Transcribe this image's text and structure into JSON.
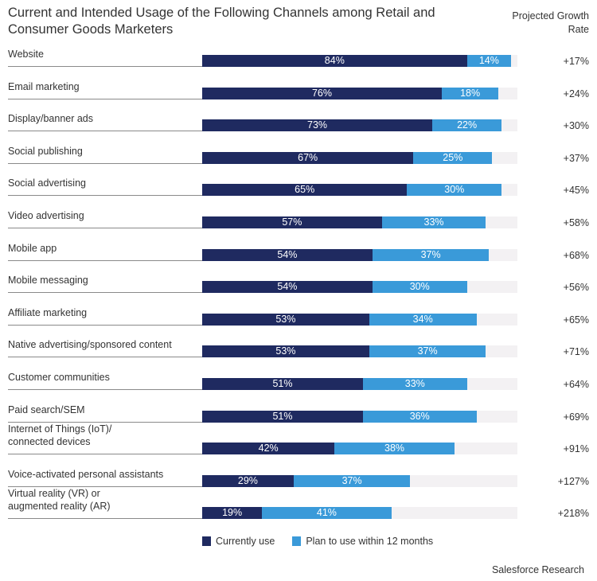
{
  "chart_data": {
    "type": "bar",
    "stacked": true,
    "orientation": "horizontal",
    "title": "Current and Intended Usage of the Following Channels among Retail and Consumer Goods Marketers",
    "growth_header": "Projected Growth Rate",
    "xlim": [
      0,
      100
    ],
    "categories": [
      "Website",
      "Email marketing",
      "Display/banner ads",
      "Social publishing",
      "Social advertising",
      "Video advertising",
      "Mobile app",
      "Mobile messaging",
      "Affiliate marketing",
      "Native advertising/sponsored content",
      "Customer communities",
      "Paid search/SEM",
      "Internet of Things (IoT)/ connected devices",
      "Voice-activated personal assistants",
      "Virtual reality (VR) or augmented reality (AR)"
    ],
    "series": [
      {
        "name": "Currently use",
        "color": "#1f2a60",
        "values": [
          84,
          76,
          73,
          67,
          65,
          57,
          54,
          54,
          53,
          53,
          51,
          51,
          42,
          29,
          19
        ]
      },
      {
        "name": "Plan to use within 12 months",
        "color": "#3a9ad9",
        "values": [
          14,
          18,
          22,
          25,
          30,
          33,
          37,
          30,
          34,
          37,
          33,
          36,
          38,
          37,
          41
        ]
      }
    ],
    "growth_rates": [
      "+17%",
      "+24%",
      "+30%",
      "+37%",
      "+45%",
      "+58%",
      "+68%",
      "+56%",
      "+65%",
      "+71%",
      "+64%",
      "+69%",
      "+91%",
      "+127%",
      "+218%"
    ],
    "legend_position": "bottom",
    "source": "Salesforce Research"
  }
}
